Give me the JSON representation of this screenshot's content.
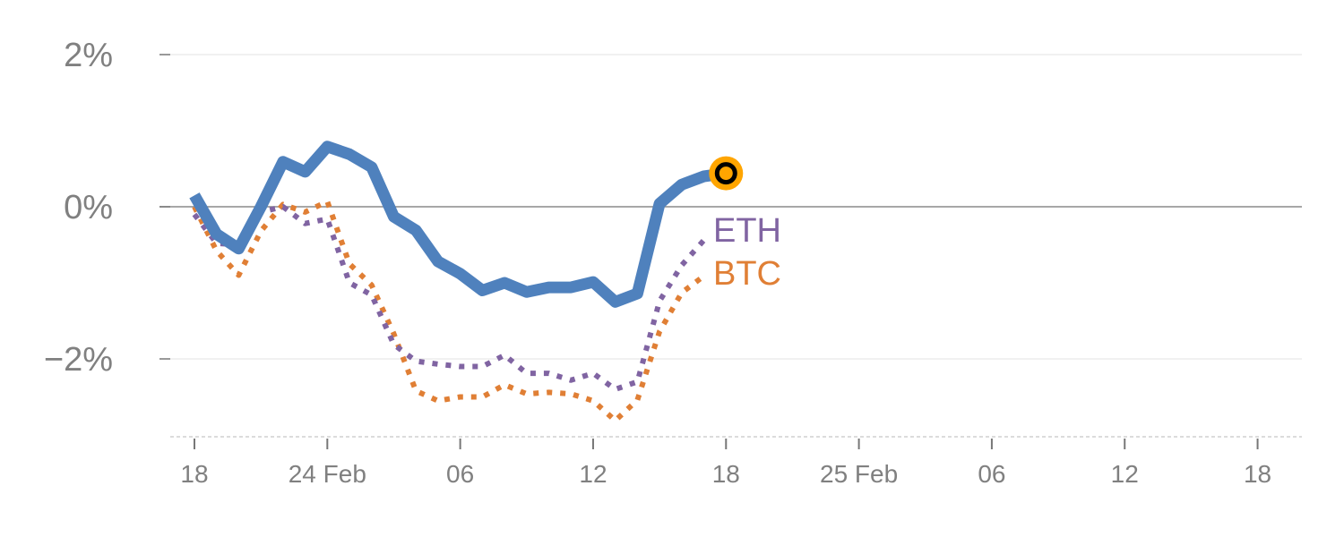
{
  "chart_data": {
    "type": "line",
    "title": "",
    "xlabel": "",
    "ylabel": "",
    "x_unit": "hours",
    "xlim": [
      -1,
      50
    ],
    "ylim": [
      -3,
      2.4
    ],
    "grid": true,
    "x_ticks": [
      {
        "value": 0,
        "label": "18"
      },
      {
        "value": 6,
        "label": "24 Feb"
      },
      {
        "value": 12,
        "label": "06"
      },
      {
        "value": 18,
        "label": "12"
      },
      {
        "value": 24,
        "label": "18"
      },
      {
        "value": 30,
        "label": "25 Feb"
      },
      {
        "value": 36,
        "label": "06"
      },
      {
        "value": 42,
        "label": "12"
      },
      {
        "value": 48,
        "label": "18"
      }
    ],
    "y_ticks": [
      {
        "value": 2,
        "label": "2%"
      },
      {
        "value": 0,
        "label": "0%"
      },
      {
        "value": -2,
        "label": "−2%"
      }
    ],
    "series": [
      {
        "name": "",
        "color": "#4f81bd",
        "style": "solid",
        "values": [
          0.15,
          -0.36,
          -0.55,
          0.0,
          0.59,
          0.46,
          0.79,
          0.69,
          0.52,
          -0.13,
          -0.31,
          -0.72,
          -0.88,
          -1.1,
          -1.0,
          -1.12,
          -1.06,
          -1.06,
          -0.99,
          -1.25,
          -1.14,
          0.04,
          0.29,
          0.4,
          0.44
        ]
      },
      {
        "name": "ETH",
        "color": "#8064a2",
        "style": "dotted",
        "values": [
          -0.1,
          -0.48,
          -0.5,
          -0.07,
          0.0,
          -0.22,
          -0.16,
          -1.0,
          -1.16,
          -1.81,
          -2.03,
          -2.07,
          -2.1,
          -2.1,
          -1.95,
          -2.19,
          -2.19,
          -2.28,
          -2.19,
          -2.4,
          -2.3,
          -1.24,
          -0.77,
          -0.44
        ]
      },
      {
        "name": "BTC",
        "color": "#e07f35",
        "style": "dotted",
        "values": [
          0.0,
          -0.58,
          -0.9,
          -0.32,
          0.03,
          -0.07,
          0.07,
          -0.75,
          -1.03,
          -1.67,
          -2.42,
          -2.55,
          -2.5,
          -2.5,
          -2.34,
          -2.46,
          -2.44,
          -2.46,
          -2.55,
          -2.81,
          -2.54,
          -1.64,
          -1.13,
          -0.91
        ]
      }
    ],
    "highlight_marker": {
      "series": 0,
      "index": 24,
      "fill": "#ffa500"
    },
    "baseline_value": 0,
    "floor_value": -3
  }
}
